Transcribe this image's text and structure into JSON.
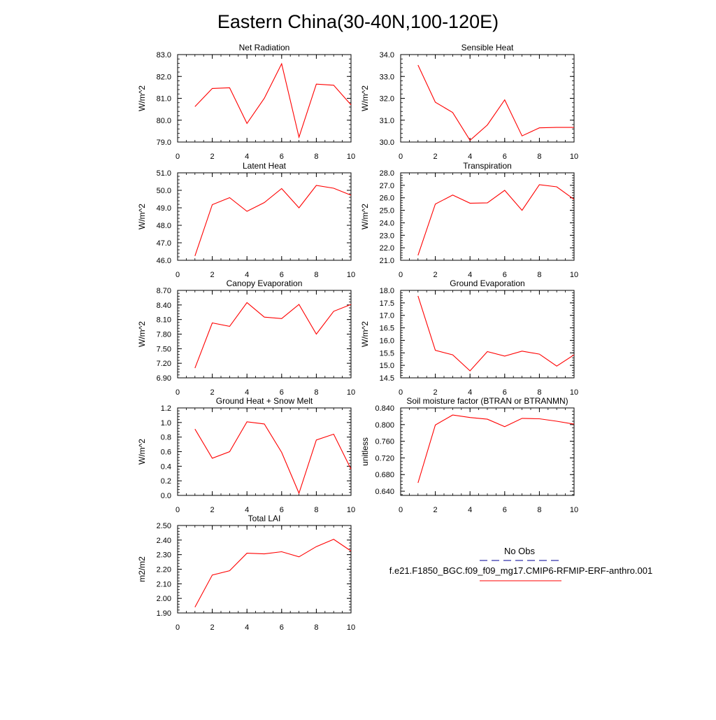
{
  "figure": {
    "title": "Eastern China(30-40N,100-120E)"
  },
  "chart_data": [
    {
      "type": "line",
      "title": "Net Radiation",
      "ylabel": "W/m^2",
      "x": [
        1,
        2,
        3,
        4,
        5,
        6,
        7,
        8,
        9,
        10
      ],
      "values": [
        80.62,
        81.45,
        81.48,
        79.85,
        81.0,
        82.58,
        79.22,
        81.65,
        81.6,
        80.7
      ],
      "xlim": [
        0,
        10
      ],
      "ylim": [
        79.0,
        83.0
      ],
      "xticks": [
        0,
        2,
        4,
        6,
        8,
        10
      ],
      "xtick_labels": [
        "0",
        "2",
        "4",
        "6",
        "8",
        "10"
      ],
      "yticks": [
        79.0,
        80.0,
        81.0,
        82.0,
        83.0
      ],
      "ytick_labels": [
        "79.0",
        "80.0",
        "81.0",
        "82.0",
        "83.0"
      ],
      "line_color": "#ff0000"
    },
    {
      "type": "line",
      "title": "Sensible Heat",
      "ylabel": "W/m^2",
      "x": [
        1,
        2,
        3,
        4,
        5,
        6,
        7,
        8,
        9,
        10
      ],
      "values": [
        33.52,
        31.82,
        31.35,
        30.08,
        30.78,
        31.93,
        30.28,
        30.65,
        30.67,
        30.67
      ],
      "xlim": [
        0,
        10
      ],
      "ylim": [
        30.0,
        34.0
      ],
      "xticks": [
        0,
        2,
        4,
        6,
        8,
        10
      ],
      "xtick_labels": [
        "0",
        "2",
        "4",
        "6",
        "8",
        "10"
      ],
      "yticks": [
        30.0,
        31.0,
        32.0,
        33.0,
        34.0
      ],
      "ytick_labels": [
        "30.0",
        "31.0",
        "32.0",
        "33.0",
        "34.0"
      ],
      "line_color": "#ff0000"
    },
    {
      "type": "line",
      "title": "Latent Heat",
      "ylabel": "W/m^2",
      "x": [
        1,
        2,
        3,
        4,
        5,
        6,
        7,
        8,
        9,
        10
      ],
      "values": [
        46.25,
        49.18,
        49.58,
        48.8,
        49.3,
        50.1,
        49.0,
        50.28,
        50.12,
        49.72
      ],
      "xlim": [
        0,
        10
      ],
      "ylim": [
        46.0,
        51.0
      ],
      "xticks": [
        0,
        2,
        4,
        6,
        8,
        10
      ],
      "xtick_labels": [
        "0",
        "2",
        "4",
        "6",
        "8",
        "10"
      ],
      "yticks": [
        46.0,
        47.0,
        48.0,
        49.0,
        50.0,
        51.0
      ],
      "ytick_labels": [
        "46.0",
        "47.0",
        "48.0",
        "49.0",
        "50.0",
        "51.0"
      ],
      "line_color": "#ff0000"
    },
    {
      "type": "line",
      "title": "Transpiration",
      "ylabel": "W/m^2",
      "x": [
        1,
        2,
        3,
        4,
        5,
        6,
        7,
        8,
        9,
        10
      ],
      "values": [
        21.4,
        25.5,
        26.22,
        25.57,
        25.6,
        26.6,
        25.0,
        27.05,
        26.88,
        25.88
      ],
      "xlim": [
        0,
        10
      ],
      "ylim": [
        21.0,
        28.0
      ],
      "xticks": [
        0,
        2,
        4,
        6,
        8,
        10
      ],
      "xtick_labels": [
        "0",
        "2",
        "4",
        "6",
        "8",
        "10"
      ],
      "yticks": [
        21.0,
        22.0,
        23.0,
        24.0,
        25.0,
        26.0,
        27.0,
        28.0
      ],
      "ytick_labels": [
        "21.0",
        "22.0",
        "23.0",
        "24.0",
        "25.0",
        "26.0",
        "27.0",
        "28.0"
      ],
      "line_color": "#ff0000"
    },
    {
      "type": "line",
      "title": "Canopy Evaporation",
      "ylabel": "W/m^2",
      "x": [
        1,
        2,
        3,
        4,
        5,
        6,
        7,
        8,
        9,
        10
      ],
      "values": [
        7.1,
        8.03,
        7.96,
        8.45,
        8.15,
        8.12,
        8.41,
        7.8,
        8.27,
        8.41
      ],
      "xlim": [
        0,
        10
      ],
      "ylim": [
        6.9,
        8.7
      ],
      "xticks": [
        0,
        2,
        4,
        6,
        8,
        10
      ],
      "xtick_labels": [
        "0",
        "2",
        "4",
        "6",
        "8",
        "10"
      ],
      "yticks": [
        6.9,
        7.2,
        7.5,
        7.8,
        8.1,
        8.4,
        8.7
      ],
      "ytick_labels": [
        "6.90",
        "7.20",
        "7.50",
        "7.80",
        "8.10",
        "8.40",
        "8.70"
      ],
      "line_color": "#ff0000"
    },
    {
      "type": "line",
      "title": "Ground Evaporation",
      "ylabel": "W/m^2",
      "x": [
        1,
        2,
        3,
        4,
        5,
        6,
        7,
        8,
        9,
        10
      ],
      "values": [
        17.78,
        15.6,
        15.42,
        14.78,
        15.55,
        15.37,
        15.57,
        15.45,
        14.97,
        15.42
      ],
      "xlim": [
        0,
        10
      ],
      "ylim": [
        14.5,
        18.0
      ],
      "xticks": [
        0,
        2,
        4,
        6,
        8,
        10
      ],
      "xtick_labels": [
        "0",
        "2",
        "4",
        "6",
        "8",
        "10"
      ],
      "yticks": [
        14.5,
        15.0,
        15.5,
        16.0,
        16.5,
        17.0,
        17.5,
        18.0
      ],
      "ytick_labels": [
        "14.5",
        "15.0",
        "15.5",
        "16.0",
        "16.5",
        "17.0",
        "17.5",
        "18.0"
      ],
      "line_color": "#ff0000"
    },
    {
      "type": "line",
      "title": "Ground Heat + Snow Melt",
      "ylabel": "W/m^2",
      "x": [
        1,
        2,
        3,
        4,
        5,
        6,
        7,
        8,
        9,
        10
      ],
      "values": [
        0.91,
        0.51,
        0.6,
        1.01,
        0.98,
        0.59,
        0.03,
        0.76,
        0.84,
        0.36
      ],
      "xlim": [
        0,
        10
      ],
      "ylim": [
        0.0,
        1.2
      ],
      "xticks": [
        0,
        2,
        4,
        6,
        8,
        10
      ],
      "xtick_labels": [
        "0",
        "2",
        "4",
        "6",
        "8",
        "10"
      ],
      "yticks": [
        0.0,
        0.2,
        0.4,
        0.6,
        0.8,
        1.0,
        1.2
      ],
      "ytick_labels": [
        "0.0",
        "0.2",
        "0.4",
        "0.6",
        "0.8",
        "1.0",
        "1.2"
      ],
      "line_color": "#ff0000"
    },
    {
      "type": "line",
      "title": "Soil moisture factor (BTRAN or BTRANMN)",
      "ylabel": "unitless",
      "x": [
        1,
        2,
        3,
        4,
        5,
        6,
        7,
        8,
        9,
        10
      ],
      "values": [
        0.66,
        0.799,
        0.823,
        0.817,
        0.813,
        0.795,
        0.815,
        0.814,
        0.808,
        0.801
      ],
      "xlim": [
        0,
        10
      ],
      "ylim": [
        0.63,
        0.84
      ],
      "xticks": [
        0,
        2,
        4,
        6,
        8,
        10
      ],
      "xtick_labels": [
        "0",
        "2",
        "4",
        "6",
        "8",
        "10"
      ],
      "yticks": [
        0.64,
        0.68,
        0.72,
        0.76,
        0.8,
        0.84
      ],
      "ytick_labels": [
        "0.640",
        "0.680",
        "0.720",
        "0.760",
        "0.800",
        "0.840"
      ],
      "line_color": "#ff0000"
    },
    {
      "type": "line",
      "title": "Total LAI",
      "ylabel": "m2/m2",
      "x": [
        1,
        2,
        3,
        4,
        5,
        6,
        7,
        8,
        9,
        10
      ],
      "values": [
        1.94,
        2.16,
        2.19,
        2.31,
        2.305,
        2.32,
        2.285,
        2.355,
        2.405,
        2.325
      ],
      "xlim": [
        0,
        10
      ],
      "ylim": [
        1.9,
        2.5
      ],
      "xticks": [
        0,
        2,
        4,
        6,
        8,
        10
      ],
      "xtick_labels": [
        "0",
        "2",
        "4",
        "6",
        "8",
        "10"
      ],
      "yticks": [
        1.9,
        2.0,
        2.1,
        2.2,
        2.3,
        2.4,
        2.5
      ],
      "ytick_labels": [
        "1.90",
        "2.00",
        "2.10",
        "2.20",
        "2.30",
        "2.40",
        "2.50"
      ],
      "line_color": "#ff0000"
    }
  ],
  "legend": {
    "entries": [
      {
        "label": "No Obs",
        "color": "#3333aa",
        "style": "dashed"
      },
      {
        "label": "f.e21.F1850_BGC.f09_f09_mg17.CMIP6-RFMIP-ERF-anthro.001",
        "color": "#ff0000",
        "style": "solid"
      }
    ]
  }
}
